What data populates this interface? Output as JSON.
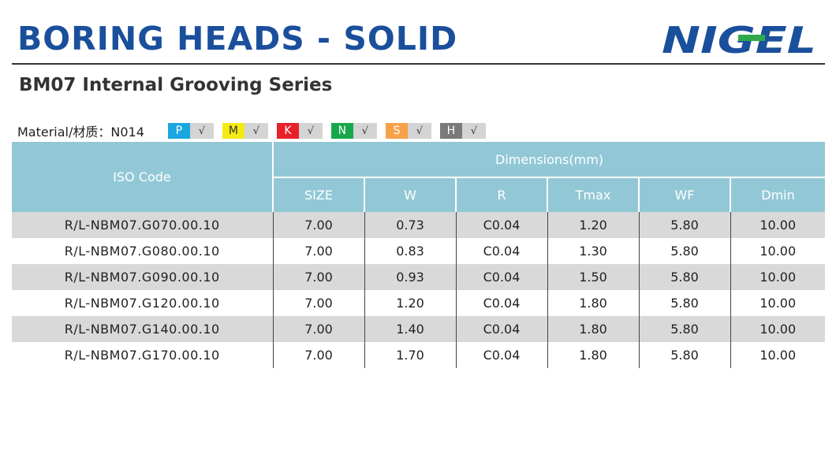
{
  "header": {
    "title": "BORING HEADS - SOLID",
    "logo_text": "NIGEL",
    "subtitle": "BM07 Internal Grooving Series"
  },
  "material": {
    "label": "Material/材质：N014",
    "chips": [
      {
        "code": "P",
        "check": "√",
        "color": "#1aa7e0",
        "text_color": "#ffffff"
      },
      {
        "code": "M",
        "check": "√",
        "color": "#f5ea14",
        "text_color": "#333333"
      },
      {
        "code": "K",
        "check": "√",
        "color": "#e8202a",
        "text_color": "#ffffff"
      },
      {
        "code": "N",
        "check": "√",
        "color": "#17a84b",
        "text_color": "#ffffff"
      },
      {
        "code": "S",
        "check": "√",
        "color": "#f7a14a",
        "text_color": "#ffffff"
      },
      {
        "code": "H",
        "check": "√",
        "color": "#7a7a7a",
        "text_color": "#ffffff"
      }
    ]
  },
  "table": {
    "iso_header": "ISO Code",
    "dims_header": "Dimensions(mm)",
    "columns": [
      "SIZE",
      "W",
      "R",
      "Tmax",
      "WF",
      "Dmin"
    ],
    "rows": [
      {
        "iso": "R/L-NBM07.G070.00.10",
        "vals": [
          "7.00",
          "0.73",
          "C0.04",
          "1.20",
          "5.80",
          "10.00"
        ]
      },
      {
        "iso": "R/L-NBM07.G080.00.10",
        "vals": [
          "7.00",
          "0.83",
          "C0.04",
          "1.30",
          "5.80",
          "10.00"
        ]
      },
      {
        "iso": "R/L-NBM07.G090.00.10",
        "vals": [
          "7.00",
          "0.93",
          "C0.04",
          "1.50",
          "5.80",
          "10.00"
        ]
      },
      {
        "iso": "R/L-NBM07.G120.00.10",
        "vals": [
          "7.00",
          "1.20",
          "C0.04",
          "1.80",
          "5.80",
          "10.00"
        ]
      },
      {
        "iso": "R/L-NBM07.G140.00.10",
        "vals": [
          "7.00",
          "1.40",
          "C0.04",
          "1.80",
          "5.80",
          "10.00"
        ]
      },
      {
        "iso": "R/L-NBM07.G170.00.10",
        "vals": [
          "7.00",
          "1.70",
          "C0.04",
          "1.80",
          "5.80",
          "10.00"
        ]
      }
    ]
  }
}
